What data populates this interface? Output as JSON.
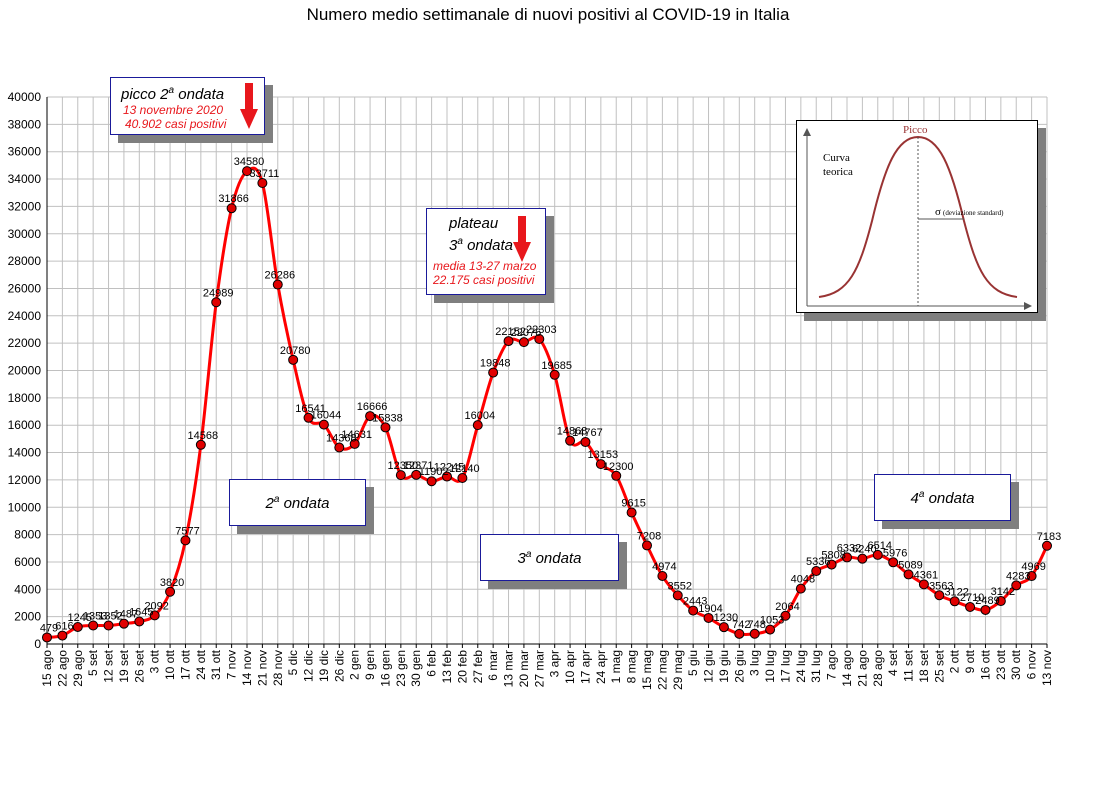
{
  "chart_data": {
    "type": "line",
    "title": "Numero medio settimanale di nuovi positivi al COVID-19 in Italia",
    "xlabel": "",
    "ylabel": "",
    "ylim": [
      0,
      40000
    ],
    "yticks": [
      0,
      2000,
      4000,
      6000,
      8000,
      10000,
      12000,
      14000,
      16000,
      18000,
      20000,
      22000,
      24000,
      26000,
      28000,
      30000,
      32000,
      34000,
      36000,
      38000,
      40000
    ],
    "grid": true,
    "line_color": "#ff0000",
    "marker_color": "#e00000",
    "categories": [
      "15 ago",
      "22 ago",
      "29 ago",
      "5 set",
      "12 set",
      "19 set",
      "26 set",
      "3 ott",
      "10 ott",
      "17 ott",
      "24 ott",
      "31 ott",
      "7 nov",
      "14 nov",
      "21 nov",
      "28 nov",
      "5 dic",
      "12 dic",
      "19 dic",
      "26 dic",
      "2 gen",
      "9 gen",
      "16 gen",
      "23 gen",
      "30 gen",
      "6 feb",
      "13 feb",
      "20 feb",
      "27 feb",
      "6 mar",
      "13 mar",
      "20 mar",
      "27 mar",
      "3 apr",
      "10 apr",
      "17 apr",
      "24 apr",
      "1 mag",
      "8 mag",
      "15 mag",
      "22 mag",
      "29 mag",
      "5 giu",
      "12 giu",
      "19 giu",
      "26 giu",
      "3 lug",
      "10 lug",
      "17 lug",
      "24 lug",
      "31 lug",
      "7 ago",
      "14 ago",
      "21 ago",
      "28 ago",
      "4 set",
      "11 set",
      "18 set",
      "25 set",
      "2 ott",
      "9 ott",
      "16 ott",
      "23 ott",
      "30 ott",
      "6 nov",
      "13 nov"
    ],
    "series": [
      {
        "values": [
          479,
          616,
          1245,
          1353,
          1352,
          1487,
          1645,
          2092,
          3820,
          7577,
          14568,
          24989,
          31866,
          34580,
          33711,
          26286,
          20780,
          16541,
          16044,
          14368,
          14631,
          16666,
          15838,
          12350,
          12371,
          11902,
          12245,
          12140,
          16004,
          19848,
          22152,
          22076,
          22303,
          19685,
          14868,
          14767,
          13153,
          12300,
          9615,
          7208,
          4974,
          3552,
          2443,
          1904,
          1230,
          742,
          748,
          1053,
          2064,
          4048,
          5336,
          5808,
          6332,
          6240,
          6514,
          5976,
          5089,
          4361,
          3563,
          3122,
          2710,
          2489,
          3142,
          4283,
          4969,
          7183
        ],
        "labels": [
          "479",
          "616",
          "1245",
          "1353",
          "1352",
          "1487",
          "1645",
          "2092",
          "3820",
          "7577",
          "14568",
          "24989",
          "31866",
          "34580",
          "33711",
          "26286",
          "20780",
          "16541",
          "16044",
          "14368",
          "14631",
          "16666",
          "15838",
          "12350",
          "12371",
          "11902",
          "12245",
          "12140",
          "16004",
          "19848",
          "22152",
          "22076",
          "22303",
          "19685",
          "14868",
          "14767",
          "13153",
          "12300",
          "9615",
          "7208",
          "4974",
          "3552",
          "2443",
          "1904",
          "1230",
          "742",
          "748",
          "1053",
          "2064",
          "4048",
          "5336",
          "5808",
          "6332",
          "6240",
          "6514",
          "5976",
          "5089",
          "4361",
          "3563",
          "3122",
          "2710",
          "2489",
          "3142",
          "4283",
          "4969",
          "7183"
        ]
      }
    ]
  },
  "annotations": {
    "peak_box": {
      "title": "picco 2",
      "title_sup": "a",
      "title_suffix": " ondata",
      "date": "13 novembre 2020",
      "value": "40.902 casi positivi"
    },
    "plateau_box": {
      "line1": "plateau",
      "line2_num": "3",
      "line2_sup": "a",
      "line2_suffix": " ondata",
      "period": "media 13-27 marzo",
      "value": "22.175 casi positivi"
    },
    "wave2_box": {
      "num": "2",
      "sup": "a",
      "suffix": " ondata"
    },
    "wave3_box": {
      "num": "3",
      "sup": "a",
      "suffix": " ondata"
    },
    "wave4_box": {
      "num": "4",
      "sup": "a",
      "suffix": " ondata"
    },
    "curve_box": {
      "peak_label": "Picco",
      "curve_label_1": "Curva",
      "curve_label_2": "teorica",
      "sigma_symbol": "σ",
      "sigma_label": "(deviazione standard)"
    }
  },
  "colors": {
    "line": "#ff0000",
    "annotation_red": "#e8171c",
    "box_border": "#1a1a9a",
    "bell_curve": "#993333",
    "grid": "#c0c0c0"
  }
}
